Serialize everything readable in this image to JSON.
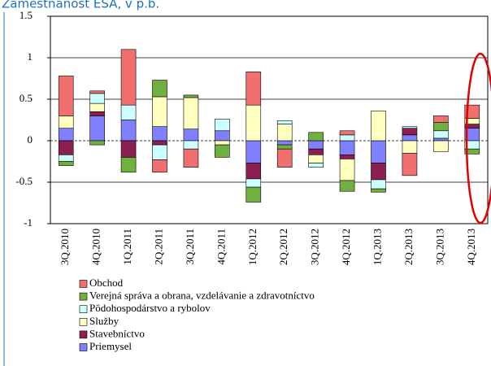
{
  "chart_data": {
    "type": "bar",
    "stacked": true,
    "title": "Zamestnanosť ESA, v p.b.",
    "categories": [
      "3Q.2010",
      "4Q.2010",
      "1Q.2011",
      "2Q.2011",
      "3Q.2011",
      "4Q.2011",
      "1Q.2012",
      "2Q.2012",
      "3Q.2012",
      "4Q.2012",
      "1Q.2013",
      "2Q.2013",
      "3Q.2013",
      "4Q.2013"
    ],
    "series": [
      {
        "name": "Obchod",
        "color": "#f07070",
        "values": [
          0.48,
          0.03,
          0.67,
          -0.15,
          -0.22,
          0,
          0.4,
          -0.22,
          0,
          0.05,
          0,
          -0.27,
          0.08,
          0.16
        ]
      },
      {
        "name": "Verejná správa a obrana, vzdelávanie a zdravotníctvo",
        "color": "#70b040",
        "values": [
          -0.05,
          -0.05,
          -0.18,
          0.2,
          0.03,
          -0.15,
          -0.18,
          -0.05,
          0.1,
          -0.13,
          -0.04,
          0,
          0.1,
          -0.06
        ]
      },
      {
        "name": "Pôdohospodárstvo a rybolov",
        "color": "#ccffff",
        "values": [
          -0.08,
          0.12,
          0.18,
          -0.18,
          -0.1,
          0.14,
          -0.1,
          0.04,
          -0.05,
          0.07,
          -0.11,
          0.02,
          0.09,
          -0.1
        ]
      },
      {
        "name": "Služby",
        "color": "#ffffc0",
        "values": [
          0.15,
          0.1,
          0,
          0.36,
          0.38,
          -0.05,
          0.43,
          0.2,
          -0.1,
          -0.26,
          0.36,
          -0.15,
          -0.13,
          0.07
        ]
      },
      {
        "name": "Stavebníctvo",
        "color": "#8b2050",
        "values": [
          -0.17,
          0.05,
          -0.2,
          -0.05,
          0,
          0,
          -0.19,
          0,
          -0.07,
          -0.05,
          -0.2,
          0.08,
          0,
          0.05
        ]
      },
      {
        "name": "Priemysel",
        "color": "#8080ff",
        "values": [
          0.15,
          0.3,
          0.25,
          0.17,
          0.14,
          0.12,
          -0.27,
          -0.05,
          -0.1,
          -0.17,
          -0.27,
          0.07,
          0.03,
          0.15
        ]
      }
    ],
    "ylim": [
      -1,
      1.5
    ],
    "yticks": [
      -1,
      -0.5,
      0,
      0.5,
      1,
      1.5
    ],
    "grid": true
  }
}
